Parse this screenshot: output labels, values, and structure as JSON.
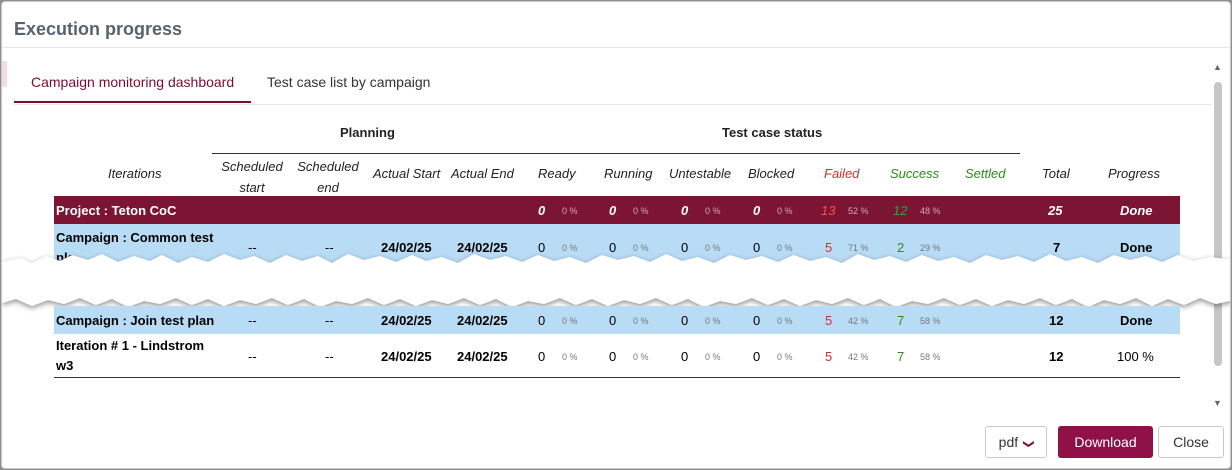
{
  "dialog": {
    "title": "Execution progress"
  },
  "tabs": [
    {
      "label": "Campaign monitoring dashboard",
      "active": true
    },
    {
      "label": "Test case list by campaign",
      "active": false
    }
  ],
  "table": {
    "group_headers": {
      "planning": "Planning",
      "status": "Test case status"
    },
    "columns": {
      "iterations": "Iterations",
      "scheduled_start": [
        "Scheduled",
        "start"
      ],
      "scheduled_end": [
        "Scheduled",
        "end"
      ],
      "actual_start": "Actual Start",
      "actual_end": "Actual End",
      "ready": "Ready",
      "running": "Running",
      "untestable": "Untestable",
      "blocked": "Blocked",
      "failed": "Failed",
      "success": "Success",
      "settled": "Settled",
      "total": "Total",
      "progress": "Progress"
    },
    "rows": [
      {
        "name": [
          "Project : Teton CoC"
        ],
        "sched_start": "",
        "sched_end": "",
        "actual_start": "",
        "actual_end": "",
        "ready": "0",
        "ready_pct": "0 %",
        "running": "0",
        "running_pct": "0 %",
        "untestable": "0",
        "untestable_pct": "0 %",
        "blocked": "0",
        "blocked_pct": "0 %",
        "failed": "13",
        "failed_pct": "52 %",
        "success": "12",
        "success_pct": "48 %",
        "settled": "",
        "settled_pct": "",
        "total": "25",
        "progress": "Done"
      },
      {
        "name": [
          "Campaign : Common test",
          "pla"
        ],
        "sched_start": "--",
        "sched_end": "--",
        "actual_start": "24/02/25",
        "actual_end": "24/02/25",
        "ready": "0",
        "ready_pct": "0 %",
        "running": "0",
        "running_pct": "0 %",
        "untestable": "0",
        "untestable_pct": "0 %",
        "blocked": "0",
        "blocked_pct": "0 %",
        "failed": "5",
        "failed_pct": "71 %",
        "success": "2",
        "success_pct": "29 %",
        "settled": "",
        "settled_pct": "",
        "total": "7",
        "progress": "Done"
      },
      {
        "name": [
          "Campaign : Join test plan"
        ],
        "sched_start": "--",
        "sched_end": "--",
        "actual_start": "24/02/25",
        "actual_end": "24/02/25",
        "ready": "0",
        "ready_pct": "0 %",
        "running": "0",
        "running_pct": "0 %",
        "untestable": "0",
        "untestable_pct": "0 %",
        "blocked": "0",
        "blocked_pct": "0 %",
        "failed": "5",
        "failed_pct": "42 %",
        "success": "7",
        "success_pct": "58 %",
        "settled": "",
        "settled_pct": "",
        "total": "12",
        "progress": "Done"
      },
      {
        "name": [
          "Iteration # 1 - Lindstrom",
          "w3"
        ],
        "sched_start": "--",
        "sched_end": "--",
        "actual_start": "24/02/25",
        "actual_end": "24/02/25",
        "ready": "0",
        "ready_pct": "0 %",
        "running": "0",
        "running_pct": "0 %",
        "untestable": "0",
        "untestable_pct": "0 %",
        "blocked": "0",
        "blocked_pct": "0 %",
        "failed": "5",
        "failed_pct": "42 %",
        "success": "7",
        "success_pct": "58 %",
        "settled": "",
        "settled_pct": "",
        "total": "12",
        "progress": "100 %"
      }
    ]
  },
  "footer": {
    "format_value": "pdf",
    "download_label": "Download",
    "close_label": "Close"
  },
  "colors": {
    "brand": "#7a0d32",
    "project_row": "#7c1433",
    "campaign_row": "#b9dcf6",
    "failed": "#d62d2d",
    "success": "#2c8a1c",
    "download_button": "#8f1147"
  }
}
